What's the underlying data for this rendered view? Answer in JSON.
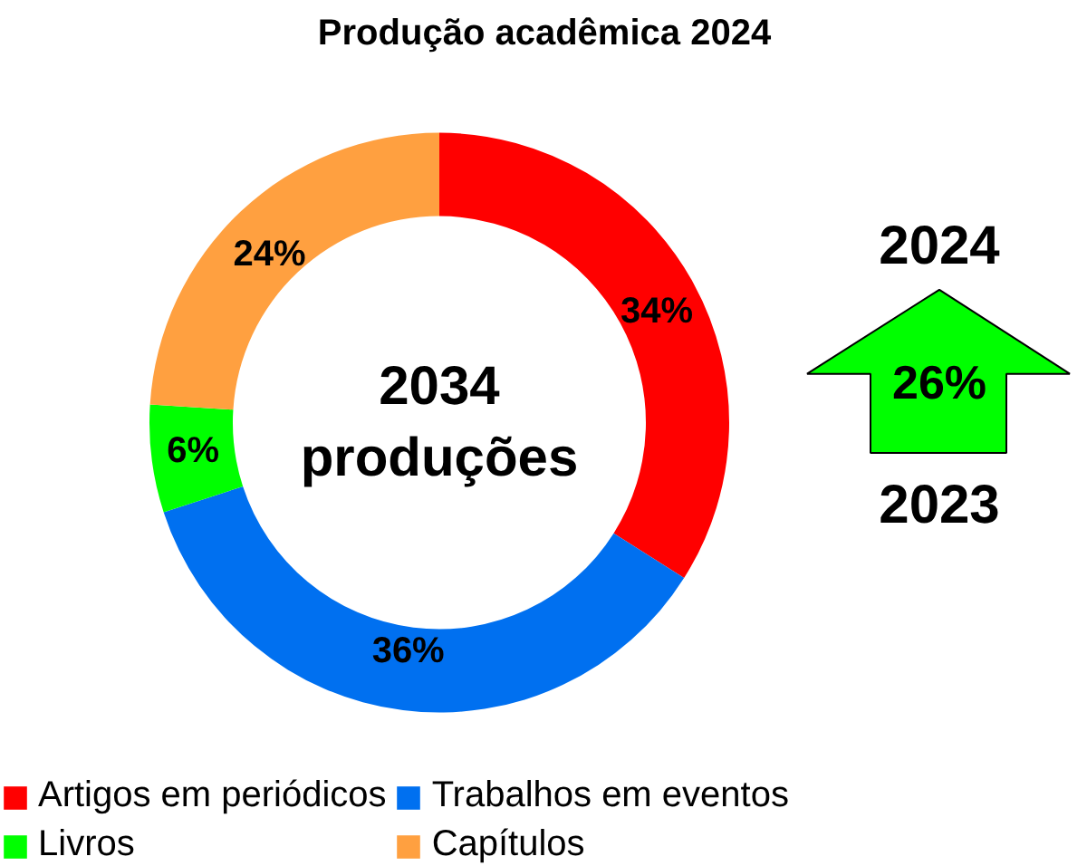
{
  "chart_data": {
    "type": "donut",
    "title": "Produção acadêmica 2024",
    "categories": [
      "Artigos em periódicos",
      "Trabalhos em eventos",
      "Livros",
      "Capítulos"
    ],
    "values": [
      34,
      36,
      6,
      24
    ],
    "colors": [
      "#ff0000",
      "#0070f0",
      "#00ff00",
      "#ffa040"
    ],
    "value_labels": [
      "34%",
      "36%",
      "6%",
      "24%"
    ],
    "legend": "bottom",
    "annotations": [
      "2034\nproduções",
      "2024",
      "26%",
      "2023"
    ]
  }
}
